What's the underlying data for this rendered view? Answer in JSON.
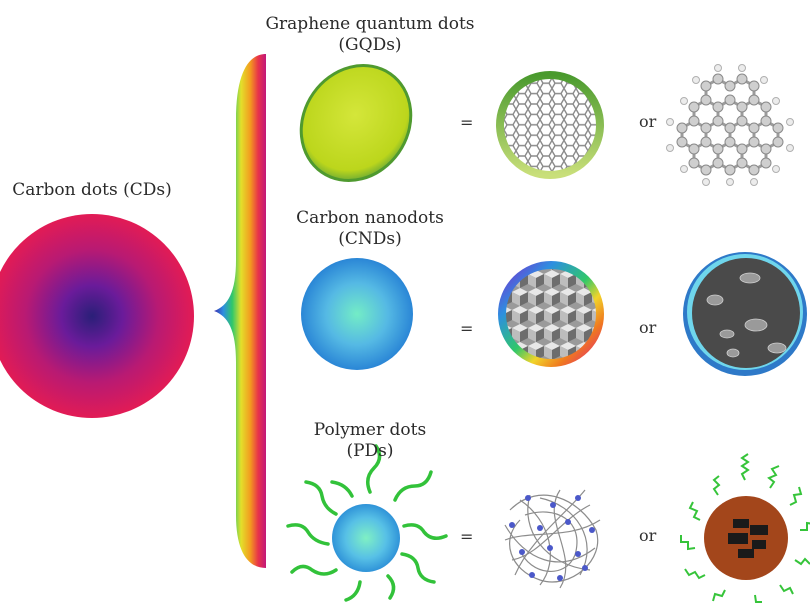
{
  "main": {
    "title": "Carbon dots (CDs)"
  },
  "rows": [
    {
      "name_line1": "Graphene quantum dots",
      "name_line2": "(GQDs)",
      "equals": "=",
      "or": "or"
    },
    {
      "name_line1": "Carbon nanodots",
      "name_line2": "(CNDs)",
      "equals": "=",
      "or": "or"
    },
    {
      "name_line1": "Polymer dots",
      "name_line2": "(PDs)",
      "equals": "=",
      "or": "or"
    }
  ],
  "colors": {
    "cd_outer": "#d91b5c",
    "cd_inner": "#3b1f7a",
    "gqd_fill": "#c6df24",
    "gqd_rim": "#5aa13a",
    "cnd_center": "#6fe3c9",
    "cnd_edge": "#2f8fd8",
    "polymer_strand": "#36c43a",
    "core_brown": "#a3461b"
  }
}
